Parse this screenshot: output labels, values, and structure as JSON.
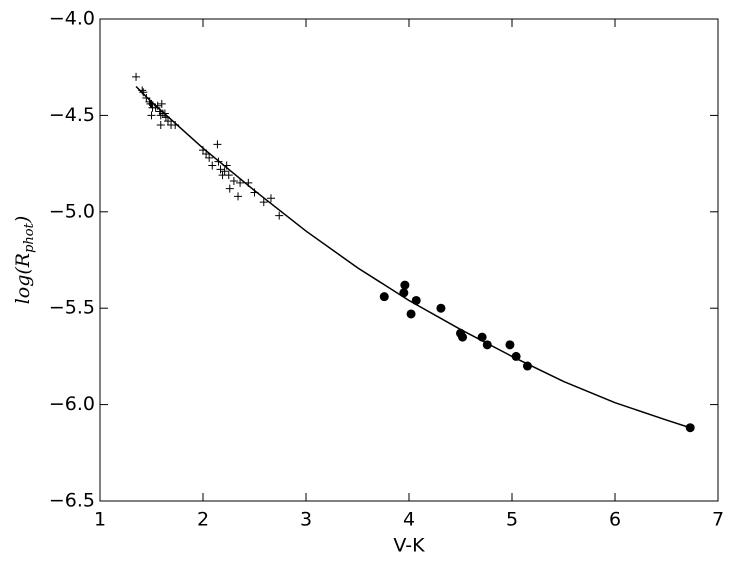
{
  "chart_data": {
    "type": "scatter",
    "xlabel": "V-K",
    "ylabel_parts": [
      "log(R",
      "phot",
      ")"
    ],
    "xlim": [
      1,
      7
    ],
    "xticks": [
      1,
      2,
      3,
      4,
      5,
      6,
      7
    ],
    "ylim": [
      -6.5,
      -4.0
    ],
    "yticks": [
      {
        "value": -6.5,
        "label": "−6.5"
      },
      {
        "value": -6.0,
        "label": "−6.0"
      },
      {
        "value": -5.5,
        "label": "−5.5"
      },
      {
        "value": -5.0,
        "label": "−5.0"
      },
      {
        "value": -4.5,
        "label": "−4.5"
      },
      {
        "value": -4.0,
        "label": "−4.0"
      }
    ],
    "series": [
      {
        "marker": "+",
        "color": "#000000",
        "x": [
          1.35,
          1.41,
          1.42,
          1.45,
          1.48,
          1.49,
          1.5,
          1.51,
          1.5,
          1.54,
          1.56,
          1.58,
          1.59,
          1.6,
          1.61,
          1.59,
          1.63,
          1.64,
          1.66,
          1.69,
          1.73,
          2.0,
          2.03,
          2.06,
          2.09,
          2.14,
          2.15,
          2.17,
          2.19,
          2.21,
          2.23,
          2.25,
          2.26,
          2.3,
          2.34,
          2.36,
          2.44,
          2.5,
          2.59,
          2.66,
          2.74
        ],
        "values": [
          -4.3,
          -4.37,
          -4.38,
          -4.41,
          -4.43,
          -4.44,
          -4.44,
          -4.46,
          -4.5,
          -4.46,
          -4.45,
          -4.48,
          -4.5,
          -4.44,
          -4.49,
          -4.55,
          -4.49,
          -4.51,
          -4.53,
          -4.55,
          -4.55,
          -4.68,
          -4.7,
          -4.72,
          -4.76,
          -4.65,
          -4.74,
          -4.78,
          -4.81,
          -4.79,
          -4.76,
          -4.81,
          -4.88,
          -4.84,
          -4.92,
          -4.85,
          -4.85,
          -4.9,
          -4.95,
          -4.93,
          -5.02
        ]
      },
      {
        "marker": "o",
        "color": "#000000",
        "x": [
          3.76,
          3.96,
          3.95,
          4.02,
          4.07,
          4.31,
          4.5,
          4.52,
          4.71,
          4.76,
          4.98,
          5.04,
          5.15,
          6.73
        ],
        "values": [
          -5.44,
          -5.38,
          -5.42,
          -5.53,
          -5.46,
          -5.5,
          -5.63,
          -5.65,
          -5.65,
          -5.69,
          -5.69,
          -5.75,
          -5.8,
          -6.12
        ]
      },
      {
        "marker": "line",
        "color": "#000000",
        "x": [
          1.35,
          1.5,
          2,
          2.5,
          3,
          3.5,
          4,
          4.5,
          5,
          5.5,
          6,
          6.5,
          6.73
        ],
        "values": [
          -4.35,
          -4.43,
          -4.67,
          -4.89,
          -5.1,
          -5.29,
          -5.46,
          -5.61,
          -5.75,
          -5.88,
          -5.99,
          -6.08,
          -6.12
        ]
      }
    ]
  }
}
